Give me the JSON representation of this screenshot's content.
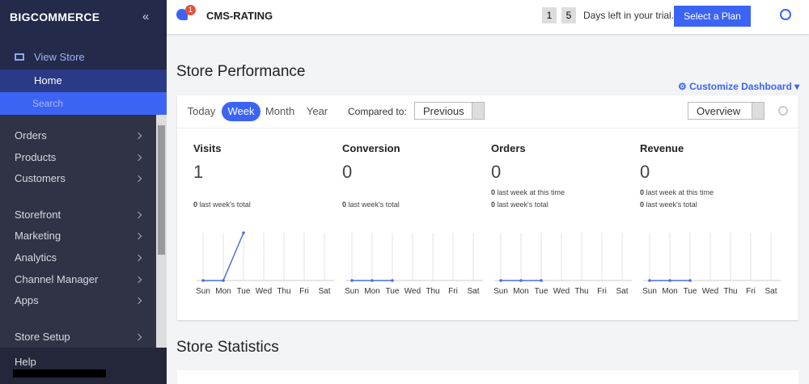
{
  "sidebar": {
    "logo": "BIGCOMMERCE",
    "view_store": "View Store",
    "home": "Home",
    "search": "Search",
    "menu": [
      [
        "Orders",
        "Products",
        "Customers"
      ],
      [
        "Storefront",
        "Marketing",
        "Analytics",
        "Channel Manager",
        "Apps"
      ],
      [
        "Store Setup"
      ]
    ],
    "help": "Help"
  },
  "header": {
    "notifications": 1,
    "store": "CMS-RATING",
    "trial_days": [
      "1",
      "5"
    ],
    "trial_text": "Days left in your trial.",
    "cta": "Select a Plan"
  },
  "performance": {
    "title": "Store Performance",
    "customize": "Customize Dashboard",
    "tabs": [
      "Today",
      "Week",
      "Month",
      "Year"
    ],
    "active_tab": 1,
    "compared_label": "Compared to:",
    "compared": "Previous",
    "view": "Overview",
    "metrics": [
      {
        "name": "Visits",
        "value": 1,
        "notes": [
          {
            "count": 0,
            "text": "last week's total"
          }
        ],
        "chart": {
          "type": "line",
          "categories": [
            "Sun",
            "Mon",
            "Tue",
            "Wed",
            "Thu",
            "Fri",
            "Sat"
          ],
          "values": [
            0,
            0,
            1,
            null,
            null,
            null,
            null
          ],
          "ylim": [
            0,
            1
          ],
          "color": "#4b6fd8"
        }
      },
      {
        "name": "Conversion",
        "value": 0,
        "notes": [
          {
            "count": 0,
            "text": "last week's total"
          }
        ],
        "chart": {
          "type": "line",
          "categories": [
            "Sun",
            "Mon",
            "Tue",
            "Wed",
            "Thu",
            "Fri",
            "Sat"
          ],
          "values": [
            0,
            0,
            0,
            null,
            null,
            null,
            null
          ],
          "ylim": [
            0,
            1
          ],
          "color": "#4b6fd8"
        }
      },
      {
        "name": "Orders",
        "value": 0,
        "notes": [
          {
            "count": 0,
            "text": "last week at this time"
          },
          {
            "count": 0,
            "text": "last week's total"
          }
        ],
        "chart": {
          "type": "line",
          "categories": [
            "Sun",
            "Mon",
            "Tue",
            "Wed",
            "Thu",
            "Fri",
            "Sat"
          ],
          "values": [
            0,
            0,
            0,
            null,
            null,
            null,
            null
          ],
          "ylim": [
            0,
            1
          ],
          "color": "#4b6fd8"
        }
      },
      {
        "name": "Revenue",
        "value": 0,
        "notes": [
          {
            "count": 0,
            "text": "last week at this time"
          },
          {
            "count": 0,
            "text": "last week's total"
          }
        ],
        "chart": {
          "type": "line",
          "categories": [
            "Sun",
            "Mon",
            "Tue",
            "Wed",
            "Thu",
            "Fri",
            "Sat"
          ],
          "values": [
            0,
            0,
            0,
            null,
            null,
            null,
            null
          ],
          "ylim": [
            0,
            1
          ],
          "color": "#4b6fd8"
        }
      }
    ]
  },
  "statistics": {
    "title": "Store Statistics"
  }
}
